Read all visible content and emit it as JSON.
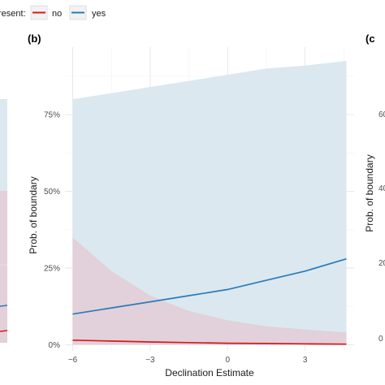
{
  "legend": {
    "title_fragment": "resent:",
    "items": [
      {
        "label": "no",
        "color": "#d7191c"
      },
      {
        "label": "yes",
        "color": "#2c7bb6"
      }
    ]
  },
  "panels": {
    "left_partial": {
      "ytick_labels": [],
      "ribbon_colors": {
        "yes": "#dbe8f0",
        "no": "#e3cdd6"
      }
    },
    "center": {
      "tag": "(b)"
    },
    "right_partial": {
      "tag": "(c",
      "ylabel": "Prob. of boundary",
      "ytick_labels": [
        "60",
        "40",
        "20",
        "0"
      ]
    }
  },
  "chart_data": {
    "type": "line",
    "title": "",
    "xlabel": "Declination Estimate",
    "ylabel": "Prob. of boundary",
    "xlim": [
      -6.3,
      4.9
    ],
    "ylim": [
      -0.02,
      0.97
    ],
    "xticks": [
      -6,
      -3,
      0,
      3
    ],
    "xtick_labels": [
      "−6",
      "−3",
      "0",
      "3"
    ],
    "yticks": [
      0,
      0.25,
      0.5,
      0.75
    ],
    "ytick_labels": [
      "0%",
      "25%",
      "50%",
      "75%"
    ],
    "grid": true,
    "legend_position": "top-left",
    "series": [
      {
        "name": "yes",
        "color": "#2c7bb6",
        "ribbon_color": "#dbe8f0",
        "x": [
          -6,
          -4.5,
          -3,
          -1.5,
          0,
          1.5,
          3,
          4.6
        ],
        "y": [
          0.1,
          0.12,
          0.14,
          0.16,
          0.18,
          0.21,
          0.24,
          0.28
        ],
        "lower": [
          0.0,
          0.0,
          0.0,
          0.0,
          0.0,
          0.0,
          0.0,
          0.0
        ],
        "upper": [
          0.8,
          0.82,
          0.84,
          0.86,
          0.88,
          0.9,
          0.91,
          0.925
        ]
      },
      {
        "name": "no",
        "color": "#d7191c",
        "ribbon_color": "#e3cdd6",
        "x": [
          -6,
          -4.5,
          -3,
          -1.5,
          0,
          1.5,
          3,
          4.6
        ],
        "y": [
          0.015,
          0.012,
          0.009,
          0.007,
          0.005,
          0.004,
          0.003,
          0.002
        ],
        "lower": [
          0.0,
          0.0,
          0.0,
          0.0,
          0.0,
          0.0,
          0.0,
          0.0
        ],
        "upper": [
          0.35,
          0.24,
          0.16,
          0.11,
          0.08,
          0.06,
          0.05,
          0.04
        ]
      }
    ]
  }
}
